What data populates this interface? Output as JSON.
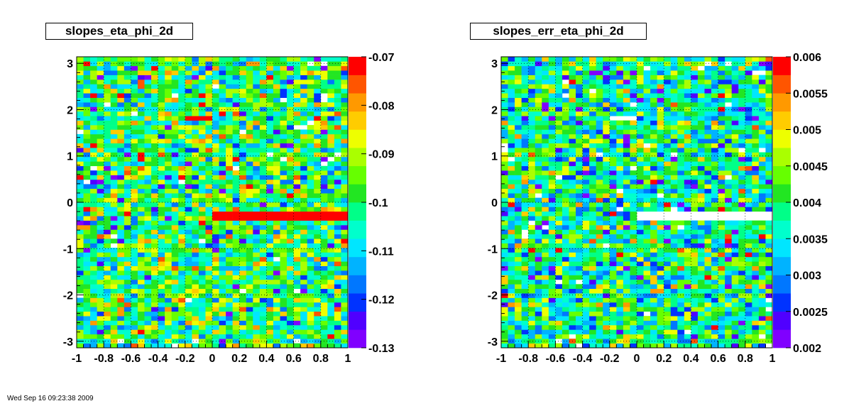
{
  "footer": {
    "timestamp": "Wed Sep 16 09:23:38 2009"
  },
  "chart_data": [
    {
      "type": "heatmap",
      "title": "slopes_eta_phi_2d",
      "xlim": [
        -1,
        1
      ],
      "ylim": [
        -3.14159,
        3.14159
      ],
      "x_ticks": [
        "-1",
        "-0.8",
        "-0.6",
        "-0.4",
        "-0.2",
        "0",
        "0.2",
        "0.4",
        "0.6",
        "0.8",
        "1"
      ],
      "y_ticks": [
        "-3",
        "-2",
        "-1",
        "0",
        "1",
        "2",
        "3"
      ],
      "zlim": [
        -0.13,
        -0.07
      ],
      "z_ticks": [
        "-0.07",
        "-0.08",
        "-0.09",
        "-0.1",
        "-0.11",
        "-0.12",
        "-0.13"
      ],
      "grid": true,
      "typical_value": -0.1,
      "features": [
        {
          "description": "saturated band",
          "x_range": [
            0,
            1
          ],
          "y_range": [
            -0.35,
            -0.2
          ],
          "value": -0.07
        },
        {
          "description": "saturated cells",
          "x_range": [
            -0.2,
            0
          ],
          "y_range": [
            1.8,
            1.9
          ],
          "value": -0.07
        }
      ]
    },
    {
      "type": "heatmap",
      "title": "slopes_err_eta_phi_2d",
      "xlim": [
        -1,
        1
      ],
      "ylim": [
        -3.14159,
        3.14159
      ],
      "x_ticks": [
        "-1",
        "-0.8",
        "-0.6",
        "-0.4",
        "-0.2",
        "0",
        "0.2",
        "0.4",
        "0.6",
        "0.8",
        "1"
      ],
      "y_ticks": [
        "-3",
        "-2",
        "-1",
        "0",
        "1",
        "2",
        "3"
      ],
      "zlim": [
        0.002,
        0.006
      ],
      "z_ticks": [
        "0.006",
        "0.0055",
        "0.005",
        "0.0045",
        "0.004",
        "0.0035",
        "0.003",
        "0.0025",
        "0.002"
      ],
      "grid": true,
      "typical_value": 0.0038,
      "features": [
        {
          "description": "empty band",
          "x_range": [
            0,
            1
          ],
          "y_range": [
            -0.35,
            -0.2
          ],
          "value": null
        },
        {
          "description": "empty cells",
          "x_range": [
            -0.2,
            0
          ],
          "y_range": [
            1.8,
            1.9
          ],
          "value": null
        }
      ]
    }
  ]
}
